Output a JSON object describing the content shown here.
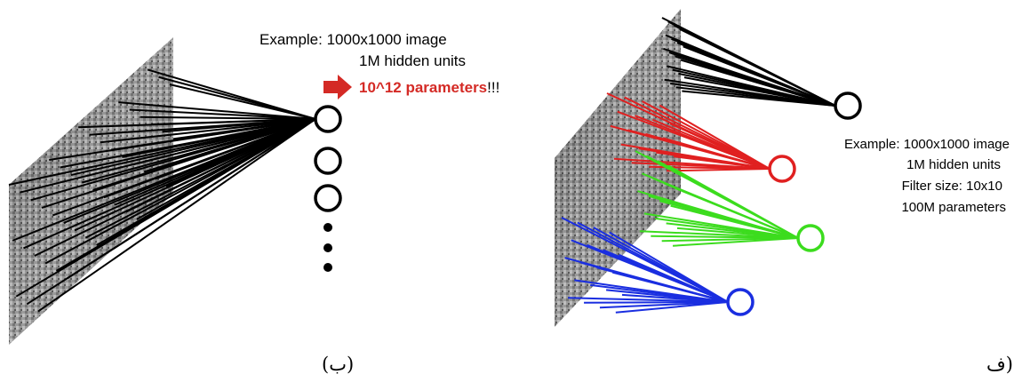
{
  "left_panel": {
    "example_line": "Example:  1000x1000 image",
    "hidden_units": "1M hidden units",
    "params_red": "10^12 parameters",
    "params_suffix": "!!!",
    "caption": "(ب)",
    "colors": {
      "arrow": "#d42a25",
      "highlight": "#d42a25",
      "lines": "#000000"
    }
  },
  "right_panel": {
    "example_line": "Example: 1000x1000 image",
    "hidden_units": "1M hidden units",
    "filter_size": "Filter size: 10x10",
    "parameters": "100M parameters",
    "caption": "ف)",
    "colors": {
      "black": "#000000",
      "red": "#e02020",
      "green": "#3cdc1e",
      "blue": "#1a2ee0"
    }
  }
}
